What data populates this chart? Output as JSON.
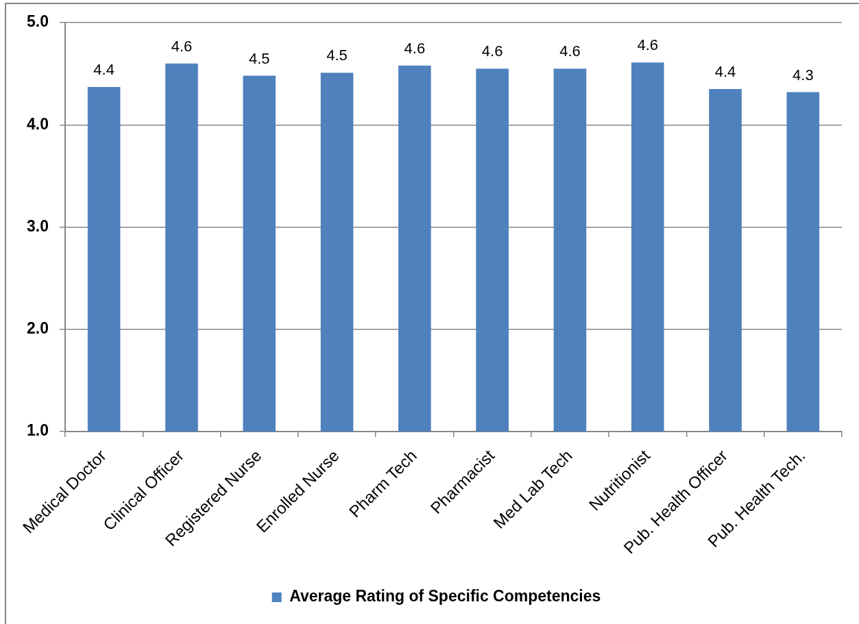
{
  "chart_data": {
    "type": "bar",
    "categories": [
      "Medical Doctor",
      "Clinical Officer",
      "Registered Nurse",
      "Enrolled Nurse",
      "Pharm Tech",
      "Pharmacist",
      "Med Lab Tech",
      "Nutritionist",
      "Pub. Health Officer",
      "Pub. Health Tech."
    ],
    "series": [
      {
        "name": "Average Rating of Specific Competencies",
        "color": "#4f81bd",
        "values": [
          4.37,
          4.6,
          4.48,
          4.51,
          4.58,
          4.55,
          4.55,
          4.61,
          4.35,
          4.32
        ],
        "value_labels": [
          "4.4",
          "4.6",
          "4.5",
          "4.5",
          "4.6",
          "4.6",
          "4.6",
          "4.6",
          "4.4",
          "4.3"
        ]
      }
    ],
    "ylim": [
      1,
      5
    ],
    "yticks": [
      {
        "value": 1,
        "label": "1.0"
      },
      {
        "value": 2,
        "label": "2.0"
      },
      {
        "value": 3,
        "label": "3.0"
      },
      {
        "value": 4,
        "label": "4.0"
      },
      {
        "value": 5,
        "label": "5.0"
      }
    ],
    "grid": "y",
    "legend": "bottom"
  }
}
